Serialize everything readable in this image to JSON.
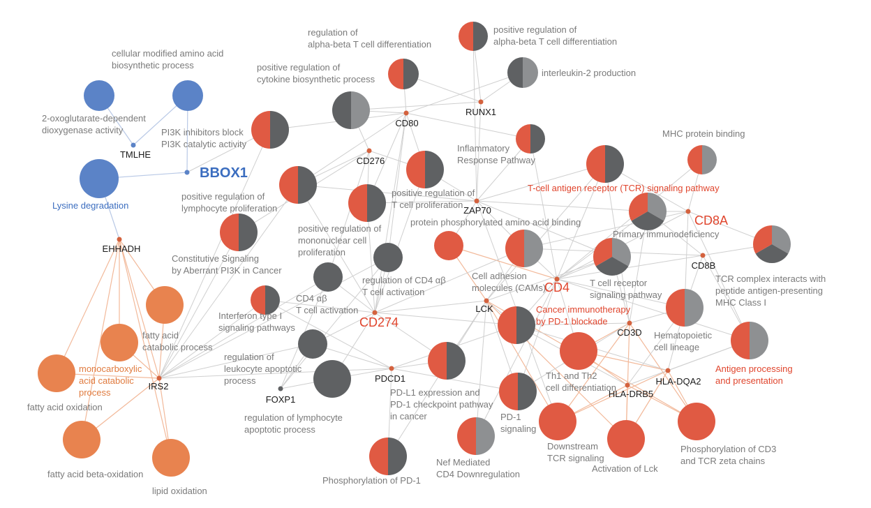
{
  "colors": {
    "red": "#e05a43",
    "dark": "#5f6163",
    "mid": "#8e9092",
    "blue": "#5b83c7",
    "orange": "#e8834f",
    "gene_text": "#1a1a1a",
    "term_text": "#7a7a7a",
    "blue_text": "#3b6dbf",
    "red_text": "#e0452d",
    "orange_text": "#e07b3f",
    "edge_gray": "#cfcfcf",
    "edge_orange": "#f2b99a",
    "edge_blue": "#b9c9e6"
  },
  "genes": [
    {
      "id": "BBOX1",
      "text": "BBOX1",
      "style": "big-blue"
    },
    {
      "id": "TMLHE",
      "text": "TMLHE",
      "style": "gene"
    },
    {
      "id": "EHHADH",
      "text": "EHHADH",
      "style": "gene"
    },
    {
      "id": "IRS2",
      "text": "IRS2",
      "style": "gene"
    },
    {
      "id": "CD80",
      "text": "CD80",
      "style": "gene"
    },
    {
      "id": "CD276",
      "text": "CD276",
      "style": "gene"
    },
    {
      "id": "RUNX1",
      "text": "RUNX1",
      "style": "gene"
    },
    {
      "id": "ZAP70",
      "text": "ZAP70",
      "style": "gene"
    },
    {
      "id": "CD8A",
      "text": "CD8A",
      "style": "big-red"
    },
    {
      "id": "CD8B",
      "text": "CD8B",
      "style": "gene"
    },
    {
      "id": "CD4",
      "text": "CD4",
      "style": "big-red"
    },
    {
      "id": "LCK",
      "text": "LCK",
      "style": "gene"
    },
    {
      "id": "CD274",
      "text": "CD274",
      "style": "big-red"
    },
    {
      "id": "PDCD1",
      "text": "PDCD1",
      "style": "gene"
    },
    {
      "id": "FOXP1",
      "text": "FOXP1",
      "style": "gene"
    },
    {
      "id": "CD3D",
      "text": "CD3D",
      "style": "gene"
    },
    {
      "id": "HLADQA2",
      "text": "HLA-DQA2",
      "style": "gene"
    },
    {
      "id": "HLADRB5",
      "text": "HLA-DRB5",
      "style": "gene"
    }
  ],
  "terms": [
    {
      "id": "t_cmaa",
      "lines": [
        "cellular modified amino acid",
        "biosynthetic process"
      ],
      "fill": "blue",
      "text_style": "term"
    },
    {
      "id": "t_2oxo",
      "lines": [
        "2-oxoglutarate-dependent",
        "dioxygenase activity"
      ],
      "fill": "blue",
      "text_style": "term"
    },
    {
      "id": "t_lys",
      "lines": [
        "Lysine degradation"
      ],
      "fill": "blue",
      "text_style": "blue"
    },
    {
      "id": "t_pi3k",
      "lines": [
        "PI3K inhibitors block",
        "PI3K catalytic activity"
      ],
      "fill": "half",
      "text_style": "term"
    },
    {
      "id": "t_prcb",
      "lines": [
        "positive regulation of",
        "cytokine biosynthetic process"
      ],
      "fill": "gray",
      "text_style": "term"
    },
    {
      "id": "t_raab",
      "lines": [
        "regulation of",
        "alpha-beta T cell differentiation"
      ],
      "fill": "half",
      "text_style": "term"
    },
    {
      "id": "t_praab",
      "lines": [
        "positive regulation of",
        "alpha-beta T cell differentiation"
      ],
      "fill": "half",
      "text_style": "term"
    },
    {
      "id": "t_il2",
      "lines": [
        "interleukin-2 production"
      ],
      "fill": "gray",
      "text_style": "term"
    },
    {
      "id": "t_infl",
      "lines": [
        "Inflammatory",
        "Response Pathway"
      ],
      "fill": "half",
      "text_style": "term"
    },
    {
      "id": "t_mhc",
      "lines": [
        "MHC protein binding"
      ],
      "fill": "halfmid",
      "text_style": "term"
    },
    {
      "id": "t_tcrsig",
      "lines": [
        "T-cell antigen receptor (TCR) signaling pathway"
      ],
      "fill": "half",
      "text_style": "red"
    },
    {
      "id": "t_prlp",
      "lines": [
        "positive regulation of",
        "lymphocyte proliferation"
      ],
      "fill": "half",
      "text_style": "term"
    },
    {
      "id": "t_prtp",
      "lines": [
        "positive regulation of",
        "T cell proliferation"
      ],
      "fill": "half",
      "text_style": "term"
    },
    {
      "id": "t_prmcp",
      "lines": [
        "positive regulation of",
        "mononuclear cell",
        "proliferation"
      ],
      "fill": "half",
      "text_style": "term"
    },
    {
      "id": "t_ppaab",
      "lines": [
        "protein phosphorylated amino acid binding"
      ],
      "fill": "red",
      "text_style": "term"
    },
    {
      "id": "t_primm",
      "lines": [
        "Primary immunodeficiency"
      ],
      "fill": "thirds",
      "text_style": "term"
    },
    {
      "id": "t_tcrc",
      "lines": [
        "TCR complex interacts with",
        "peptide antigen-presenting",
        "MHC Class I"
      ],
      "fill": "thirds",
      "text_style": "term"
    },
    {
      "id": "t_const",
      "lines": [
        "Constitutive Signaling",
        "by Aberrant PI3K in Cancer"
      ],
      "fill": "half",
      "text_style": "term"
    },
    {
      "id": "t_rcd4",
      "lines": [
        "regulation of CD4 αβ",
        "T cell activation"
      ],
      "fill": "gray",
      "text_style": "term"
    },
    {
      "id": "t_cam",
      "lines": [
        "Cell adhesion",
        "molecules (CAMs)"
      ],
      "fill": "halfmid",
      "text_style": "term"
    },
    {
      "id": "t_tcrsp",
      "lines": [
        "T cell receptor",
        "signaling pathway"
      ],
      "fill": "thirds",
      "text_style": "term"
    },
    {
      "id": "t_cd4ab",
      "lines": [
        "CD4 αβ",
        "T cell activation"
      ],
      "fill": "gray",
      "text_style": "term"
    },
    {
      "id": "t_ifn",
      "lines": [
        "Interferon type I",
        "signaling pathways"
      ],
      "fill": "half",
      "text_style": "term"
    },
    {
      "id": "t_cipd",
      "lines": [
        "Cancer immunotherapy",
        "by PD-1 blockade"
      ],
      "fill": "half",
      "text_style": "red"
    },
    {
      "id": "t_hemat",
      "lines": [
        "Hematopoietic",
        "cell lineage"
      ],
      "fill": "halfmid",
      "text_style": "term"
    },
    {
      "id": "t_facp",
      "lines": [
        "fatty acid",
        "catabolic process"
      ],
      "fill": "orange",
      "text_style": "term"
    },
    {
      "id": "t_mcacp",
      "lines": [
        "monocarboxylic",
        "acid catabolic",
        "process"
      ],
      "fill": "orange",
      "text_style": "orange"
    },
    {
      "id": "t_fao",
      "lines": [
        "fatty acid oxidation"
      ],
      "fill": "orange",
      "text_style": "term"
    },
    {
      "id": "t_rlap",
      "lines": [
        "regulation of",
        "leukocyte apoptotic",
        "process"
      ],
      "fill": "gray",
      "text_style": "term"
    },
    {
      "id": "t_rlyap",
      "lines": [
        "regulation of lymphocyte",
        "apoptotic process"
      ],
      "fill": "gray",
      "text_style": "term"
    },
    {
      "id": "t_pdl1",
      "lines": [
        "PD-L1 expression and",
        "PD-1 checkpoint pathway",
        "in cancer"
      ],
      "fill": "half",
      "text_style": "term"
    },
    {
      "id": "t_th12",
      "lines": [
        "Th1 and Th2",
        "cell differentiation"
      ],
      "fill": "red",
      "text_style": "term"
    },
    {
      "id": "t_agp",
      "lines": [
        "Antigen processing",
        "and presentation"
      ],
      "fill": "halfmid",
      "text_style": "red"
    },
    {
      "id": "t_pd1s",
      "lines": [
        "PD-1",
        "signaling"
      ],
      "fill": "half",
      "text_style": "term"
    },
    {
      "id": "t_dtcr",
      "lines": [
        "Downstream",
        "TCR signaling"
      ],
      "fill": "red",
      "text_style": "term"
    },
    {
      "id": "t_actlck",
      "lines": [
        "Activation of Lck"
      ],
      "fill": "red",
      "text_style": "term"
    },
    {
      "id": "t_pcd3",
      "lines": [
        "Phosphorylation of CD3",
        "and TCR zeta chains"
      ],
      "fill": "red",
      "text_style": "term"
    },
    {
      "id": "t_nef",
      "lines": [
        "Nef Mediated",
        "CD4 Downregulation"
      ],
      "fill": "halfmid",
      "text_style": "term"
    },
    {
      "id": "t_ppd1",
      "lines": [
        "Phosphorylation of PD-1"
      ],
      "fill": "half",
      "text_style": "term"
    },
    {
      "id": "t_fabo",
      "lines": [
        "fatty acid beta-oxidation"
      ],
      "fill": "orange",
      "text_style": "term"
    },
    {
      "id": "t_lipo",
      "lines": [
        "lipid oxidation"
      ],
      "fill": "orange",
      "text_style": "term"
    }
  ]
}
